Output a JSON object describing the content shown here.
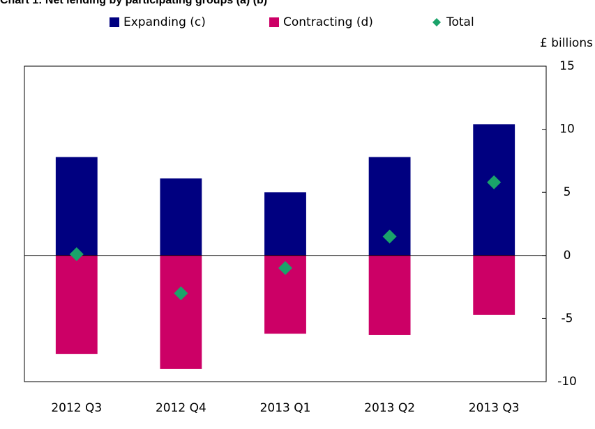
{
  "chart_data": {
    "type": "bar",
    "title": "Chart 1: Net lending by participating groups (a) (b)",
    "y_label": "£ billions",
    "categories": [
      "2012 Q3",
      "2012 Q4",
      "2013 Q1",
      "2013 Q2",
      "2013 Q3"
    ],
    "series": [
      {
        "name": "Expanding (c)",
        "color": "#000080",
        "type": "bar",
        "values": [
          7.8,
          6.1,
          5.0,
          7.8,
          10.4
        ]
      },
      {
        "name": "Contracting (d)",
        "color": "#cc0066",
        "type": "bar",
        "values": [
          -7.8,
          -9.0,
          -6.2,
          -6.3,
          -4.7
        ]
      },
      {
        "name": "Total",
        "color": "#1aa36a",
        "type": "scatter",
        "values": [
          0.1,
          -3.0,
          -1.0,
          1.5,
          5.8
        ]
      }
    ],
    "ylim": [
      -10,
      15
    ],
    "yticks": [
      -10,
      -5,
      0,
      5,
      10,
      15
    ],
    "y_axis_side": "right"
  }
}
